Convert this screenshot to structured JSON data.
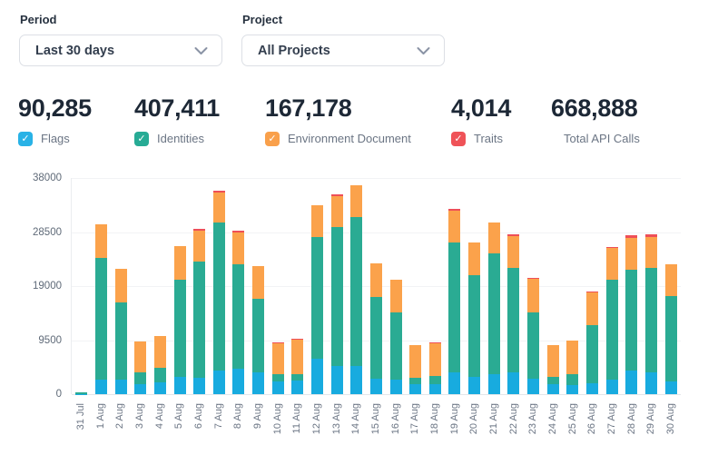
{
  "filters": {
    "period": {
      "label": "Period",
      "value": "Last 30 days"
    },
    "project": {
      "label": "Project",
      "value": "All Projects"
    }
  },
  "stats": [
    {
      "value": "90,285",
      "label": "Flags",
      "checkbox": true,
      "color": "#29b2e6"
    },
    {
      "value": "407,411",
      "label": "Identities",
      "checkbox": true,
      "color": "#27ab95"
    },
    {
      "value": "167,178",
      "label": "Environment Document",
      "checkbox": true,
      "color": "#f9a04b"
    },
    {
      "value": "4,014",
      "label": "Traits",
      "checkbox": true,
      "color": "#ef5358"
    },
    {
      "value": "668,888",
      "label": "Total API Calls",
      "checkbox": false,
      "color": null
    }
  ],
  "chart_data": {
    "type": "bar",
    "stacked": true,
    "title": "",
    "xlabel": "",
    "ylabel": "",
    "ylim": [
      0,
      38000
    ],
    "yticks": [
      0,
      9500,
      19000,
      28500,
      38000
    ],
    "grid": true,
    "legend_position": "none",
    "categories": [
      "31 Jul",
      "1 Aug",
      "2 Aug",
      "3 Aug",
      "4 Aug",
      "5 Aug",
      "6 Aug",
      "7 Aug",
      "8 Aug",
      "9 Aug",
      "10 Aug",
      "11 Aug",
      "12 Aug",
      "13 Aug",
      "14 Aug",
      "15 Aug",
      "16 Aug",
      "17 Aug",
      "18 Aug",
      "19 Aug",
      "20 Aug",
      "21 Aug",
      "22 Aug",
      "23 Aug",
      "24 Aug",
      "25 Aug",
      "26 Aug",
      "27 Aug",
      "28 Aug",
      "29 Aug",
      "30 Aug"
    ],
    "series": [
      {
        "name": "Flags",
        "color": "#18abdf",
        "values": [
          50,
          2600,
          2500,
          1700,
          2000,
          3000,
          2800,
          4100,
          4400,
          3800,
          2250,
          2350,
          6200,
          4900,
          5000,
          2760,
          2500,
          1700,
          1800,
          3830,
          3030,
          3560,
          3830,
          2770,
          1700,
          1600,
          1860,
          2500,
          4100,
          3830,
          2230
        ]
      },
      {
        "name": "Identities",
        "color": "#2aab93",
        "values": [
          200,
          21300,
          13600,
          2100,
          2650,
          17200,
          20500,
          26100,
          18500,
          12900,
          1300,
          1200,
          21450,
          24470,
          26080,
          14370,
          11820,
          1220,
          1390,
          22770,
          17930,
          21180,
          18360,
          11550,
          1300,
          1960,
          10220,
          17670,
          17830,
          18360,
          15010
        ]
      },
      {
        "name": "Environment Document",
        "color": "#fba24b",
        "values": [
          0,
          5900,
          5950,
          5400,
          5600,
          5850,
          5400,
          5200,
          5600,
          5750,
          5450,
          6100,
          5550,
          5420,
          5580,
          5860,
          5750,
          5700,
          5800,
          5700,
          5640,
          5430,
          5590,
          6010,
          5620,
          5860,
          5850,
          5580,
          5590,
          5480,
          5590
        ]
      },
      {
        "name": "Traits",
        "color": "#ee4f58",
        "values": [
          0,
          50,
          50,
          50,
          50,
          50,
          350,
          360,
          270,
          50,
          50,
          50,
          50,
          270,
          50,
          50,
          50,
          50,
          50,
          270,
          50,
          50,
          370,
          50,
          50,
          50,
          100,
          50,
          370,
          380,
          50
        ]
      }
    ]
  }
}
